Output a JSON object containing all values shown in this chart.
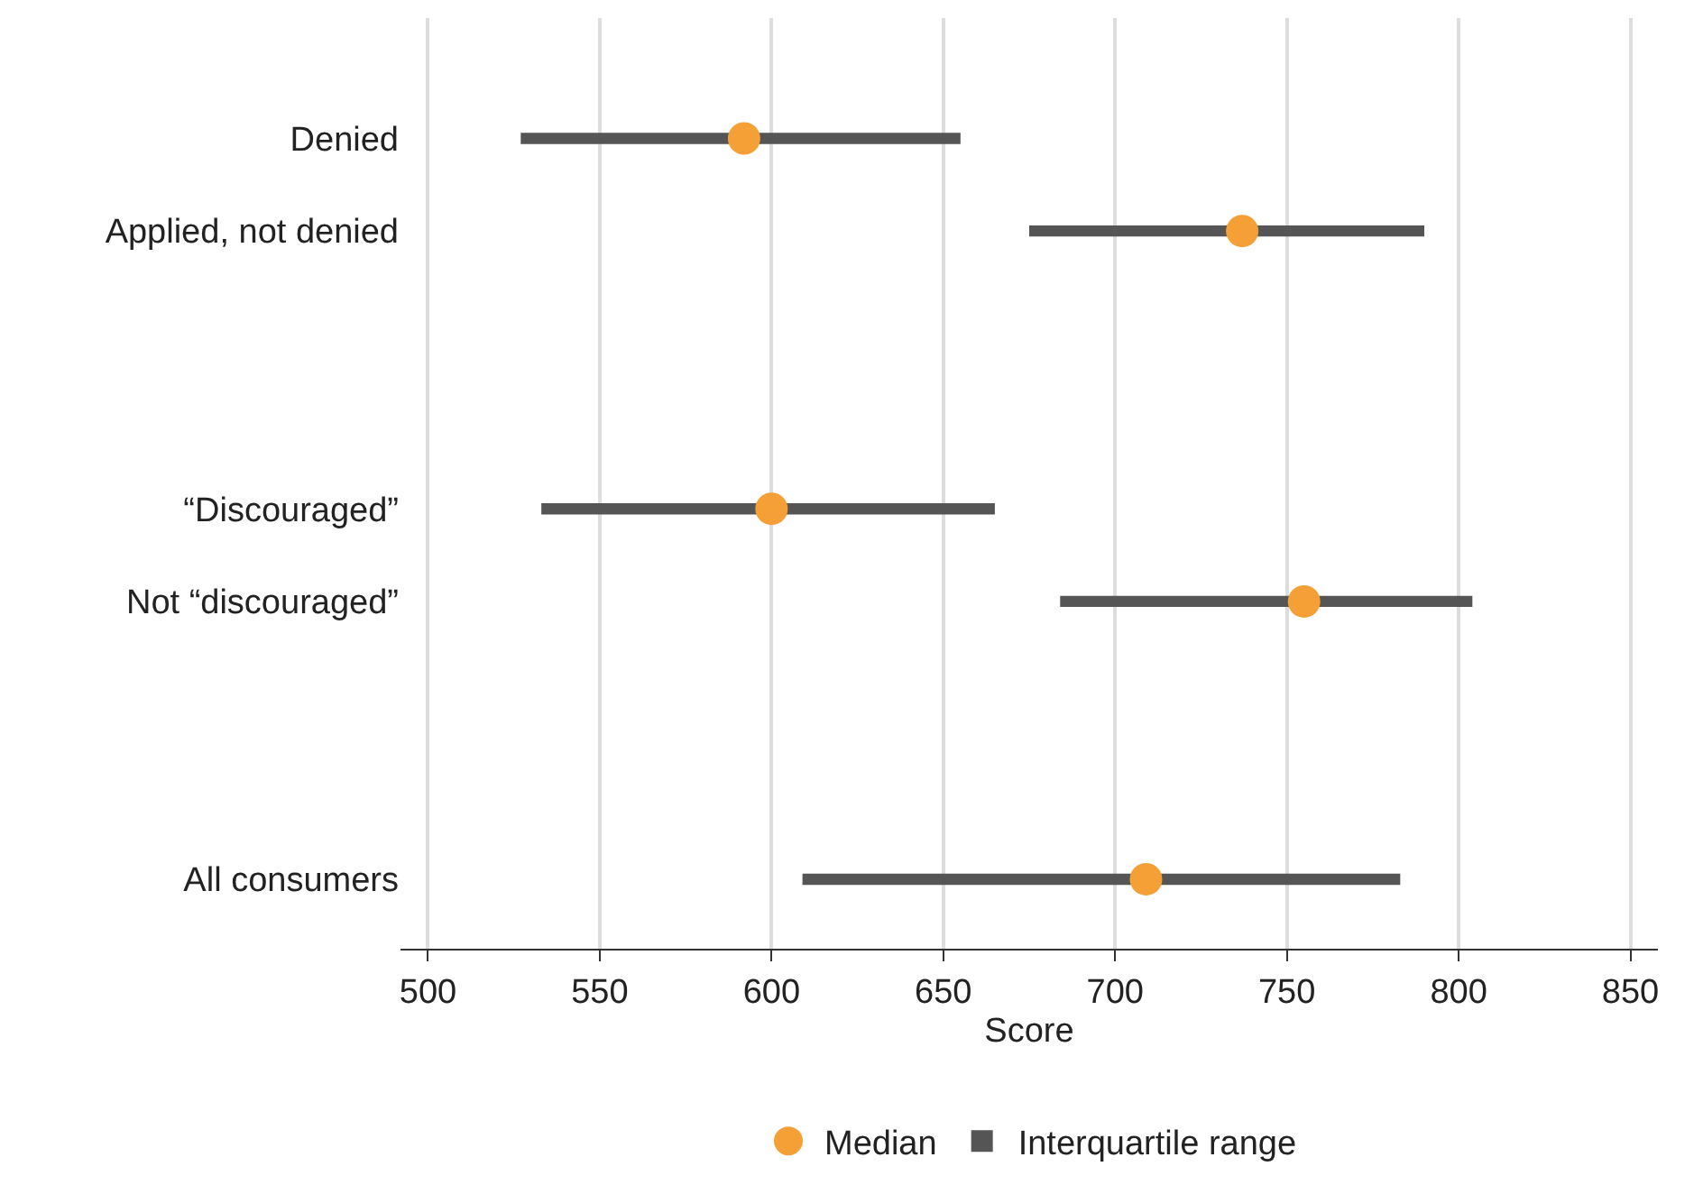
{
  "chart_data": {
    "type": "bar",
    "orientation": "horizontal",
    "xlabel": "Score",
    "categories": [
      "Denied",
      "Applied, not denied",
      null,
      null,
      "“Discouraged”",
      "Not “discouraged”",
      null,
      null,
      "All consumers"
    ],
    "series": [
      {
        "name": "Median",
        "type": "scatter",
        "color": "#f5a037",
        "values": [
          592,
          737,
          null,
          null,
          600,
          755,
          null,
          null,
          709
        ]
      },
      {
        "name": "Interquartile range",
        "color": "#555555",
        "values": [
          128,
          115,
          null,
          null,
          132,
          120,
          null,
          null,
          174
        ],
        "base": [
          527,
          675,
          null,
          null,
          533,
          684,
          null,
          null,
          609
        ]
      }
    ],
    "xlim": [
      492,
      858
    ],
    "xticks": [
      500,
      550,
      600,
      650,
      700,
      750,
      800,
      850
    ],
    "grid": "x",
    "legend": "bottom",
    "marker": "circle"
  }
}
